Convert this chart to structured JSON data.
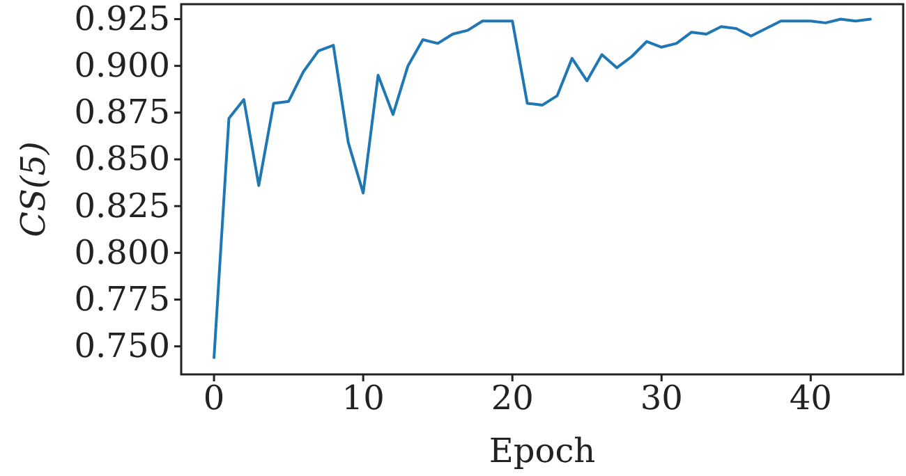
{
  "chart_data": {
    "type": "line",
    "xlabel": "Epoch",
    "ylabel": "CS(5)",
    "x": [
      0,
      1,
      2,
      3,
      4,
      5,
      6,
      7,
      8,
      9,
      10,
      11,
      12,
      13,
      14,
      15,
      16,
      17,
      18,
      19,
      20,
      21,
      22,
      23,
      24,
      25,
      26,
      27,
      28,
      29,
      30,
      31,
      32,
      33,
      34,
      35,
      36,
      37,
      38,
      39,
      40,
      41,
      42,
      43,
      44
    ],
    "series": [
      {
        "color": "#1f77b4",
        "values": [
          0.744,
          0.872,
          0.882,
          0.836,
          0.88,
          0.881,
          0.897,
          0.908,
          0.911,
          0.859,
          0.832,
          0.895,
          0.874,
          0.9,
          0.914,
          0.912,
          0.917,
          0.919,
          0.924,
          0.924,
          0.924,
          0.88,
          0.879,
          0.884,
          0.904,
          0.892,
          0.906,
          0.899,
          0.905,
          0.913,
          0.91,
          0.912,
          0.918,
          0.917,
          0.921,
          0.92,
          0.916,
          0.92,
          0.924,
          0.924,
          0.924,
          0.923,
          0.925,
          0.924,
          0.925
        ]
      }
    ],
    "xlim": [
      -2.2,
      46.2
    ],
    "ylim": [
      0.735,
      0.933
    ],
    "xticks": [
      0,
      10,
      20,
      30,
      40
    ],
    "yticks": [
      {
        "value": 0.75,
        "label": "0.750"
      },
      {
        "value": 0.775,
        "label": "0.775"
      },
      {
        "value": 0.8,
        "label": "0.800"
      },
      {
        "value": 0.825,
        "label": "0.825"
      },
      {
        "value": 0.85,
        "label": "0.850"
      },
      {
        "value": 0.875,
        "label": "0.875"
      },
      {
        "value": 0.9,
        "label": "0.900"
      },
      {
        "value": 0.925,
        "label": "0.925"
      }
    ],
    "grid": false,
    "line_style": "solid",
    "marker": "none"
  }
}
